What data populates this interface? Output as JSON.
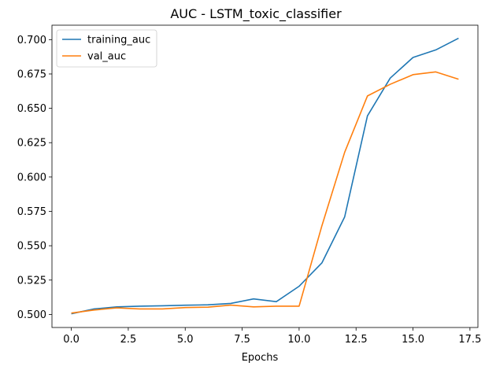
{
  "chart_data": {
    "type": "line",
    "title": "AUC - LSTM_toxic_classifier",
    "xlabel": "Epochs",
    "ylabel": "",
    "xlim": [
      -0.85,
      17.85
    ],
    "ylim": [
      0.4905,
      0.7105
    ],
    "x": [
      0,
      1,
      2,
      3,
      4,
      5,
      6,
      7,
      8,
      9,
      10,
      11,
      12,
      13,
      14,
      15,
      16,
      17
    ],
    "xticks": [
      0.0,
      2.5,
      5.0,
      7.5,
      10.0,
      12.5,
      15.0,
      17.5
    ],
    "xtick_labels": [
      "0.0",
      "2.5",
      "5.0",
      "7.5",
      "10.0",
      "12.5",
      "15.0",
      "17.5"
    ],
    "yticks": [
      0.5,
      0.525,
      0.55,
      0.575,
      0.6,
      0.625,
      0.65,
      0.675,
      0.7
    ],
    "ytick_labels": [
      "0.500",
      "0.525",
      "0.550",
      "0.575",
      "0.600",
      "0.625",
      "0.650",
      "0.675",
      "0.700"
    ],
    "grid": false,
    "legend_position": "top-left",
    "series": [
      {
        "name": "training_auc",
        "color": "#1f77b4",
        "values": [
          0.5005,
          0.504,
          0.5055,
          0.506,
          0.5063,
          0.5067,
          0.507,
          0.508,
          0.5113,
          0.5093,
          0.5205,
          0.5375,
          0.571,
          0.6445,
          0.672,
          0.687,
          0.6925,
          0.701
        ]
      },
      {
        "name": "val_auc",
        "color": "#ff7f0e",
        "values": [
          0.501,
          0.5032,
          0.5048,
          0.504,
          0.504,
          0.505,
          0.5053,
          0.5068,
          0.5055,
          0.506,
          0.506,
          0.5645,
          0.618,
          0.659,
          0.6675,
          0.6745,
          0.6765,
          0.6712
        ]
      }
    ]
  }
}
